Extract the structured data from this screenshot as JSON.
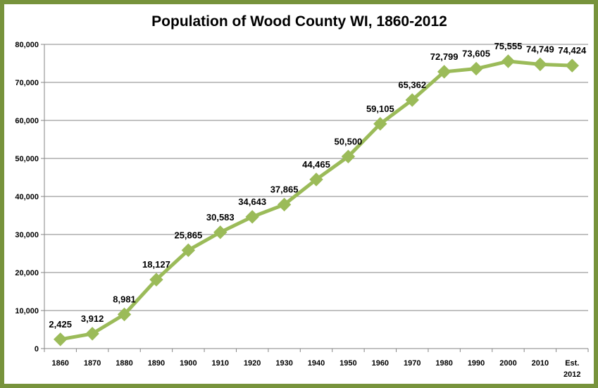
{
  "chart_data": {
    "type": "line",
    "title": "Population of Wood County WI, 1860-2012",
    "categories": [
      [
        "1860"
      ],
      [
        "1870"
      ],
      [
        "1880"
      ],
      [
        "1890"
      ],
      [
        "1900"
      ],
      [
        "1910"
      ],
      [
        "1920"
      ],
      [
        "1930"
      ],
      [
        "1940"
      ],
      [
        "1950"
      ],
      [
        "1960"
      ],
      [
        "1970"
      ],
      [
        "1980"
      ],
      [
        "1990"
      ],
      [
        "2000"
      ],
      [
        "2010"
      ],
      [
        "Est.",
        "2012"
      ]
    ],
    "series": [
      {
        "values": [
          2425,
          3912,
          8981,
          18127,
          25865,
          30583,
          34643,
          37865,
          44465,
          50500,
          59105,
          65362,
          72799,
          73605,
          75555,
          74749,
          74424
        ],
        "labels": [
          "2,425",
          "3,912",
          "8,981",
          "18,127",
          "25,865",
          "30,583",
          "34,643",
          "37,865",
          "44,465",
          "50,500",
          "59,105",
          "65,362",
          "72,799",
          "73,605",
          "75,555",
          "74,749",
          "74,424"
        ]
      }
    ],
    "y_ticks": [
      "0",
      "10,000",
      "20,000",
      "30,000",
      "40,000",
      "50,000",
      "60,000",
      "70,000",
      "80,000"
    ],
    "ylim": [
      0,
      80000
    ],
    "xlabel": "",
    "ylabel": "",
    "grid": true,
    "legend": "none",
    "colors": {
      "line": "#9bbb59",
      "marker": "#9bbb59",
      "frame": "#77933c",
      "grid": "#868686"
    }
  }
}
